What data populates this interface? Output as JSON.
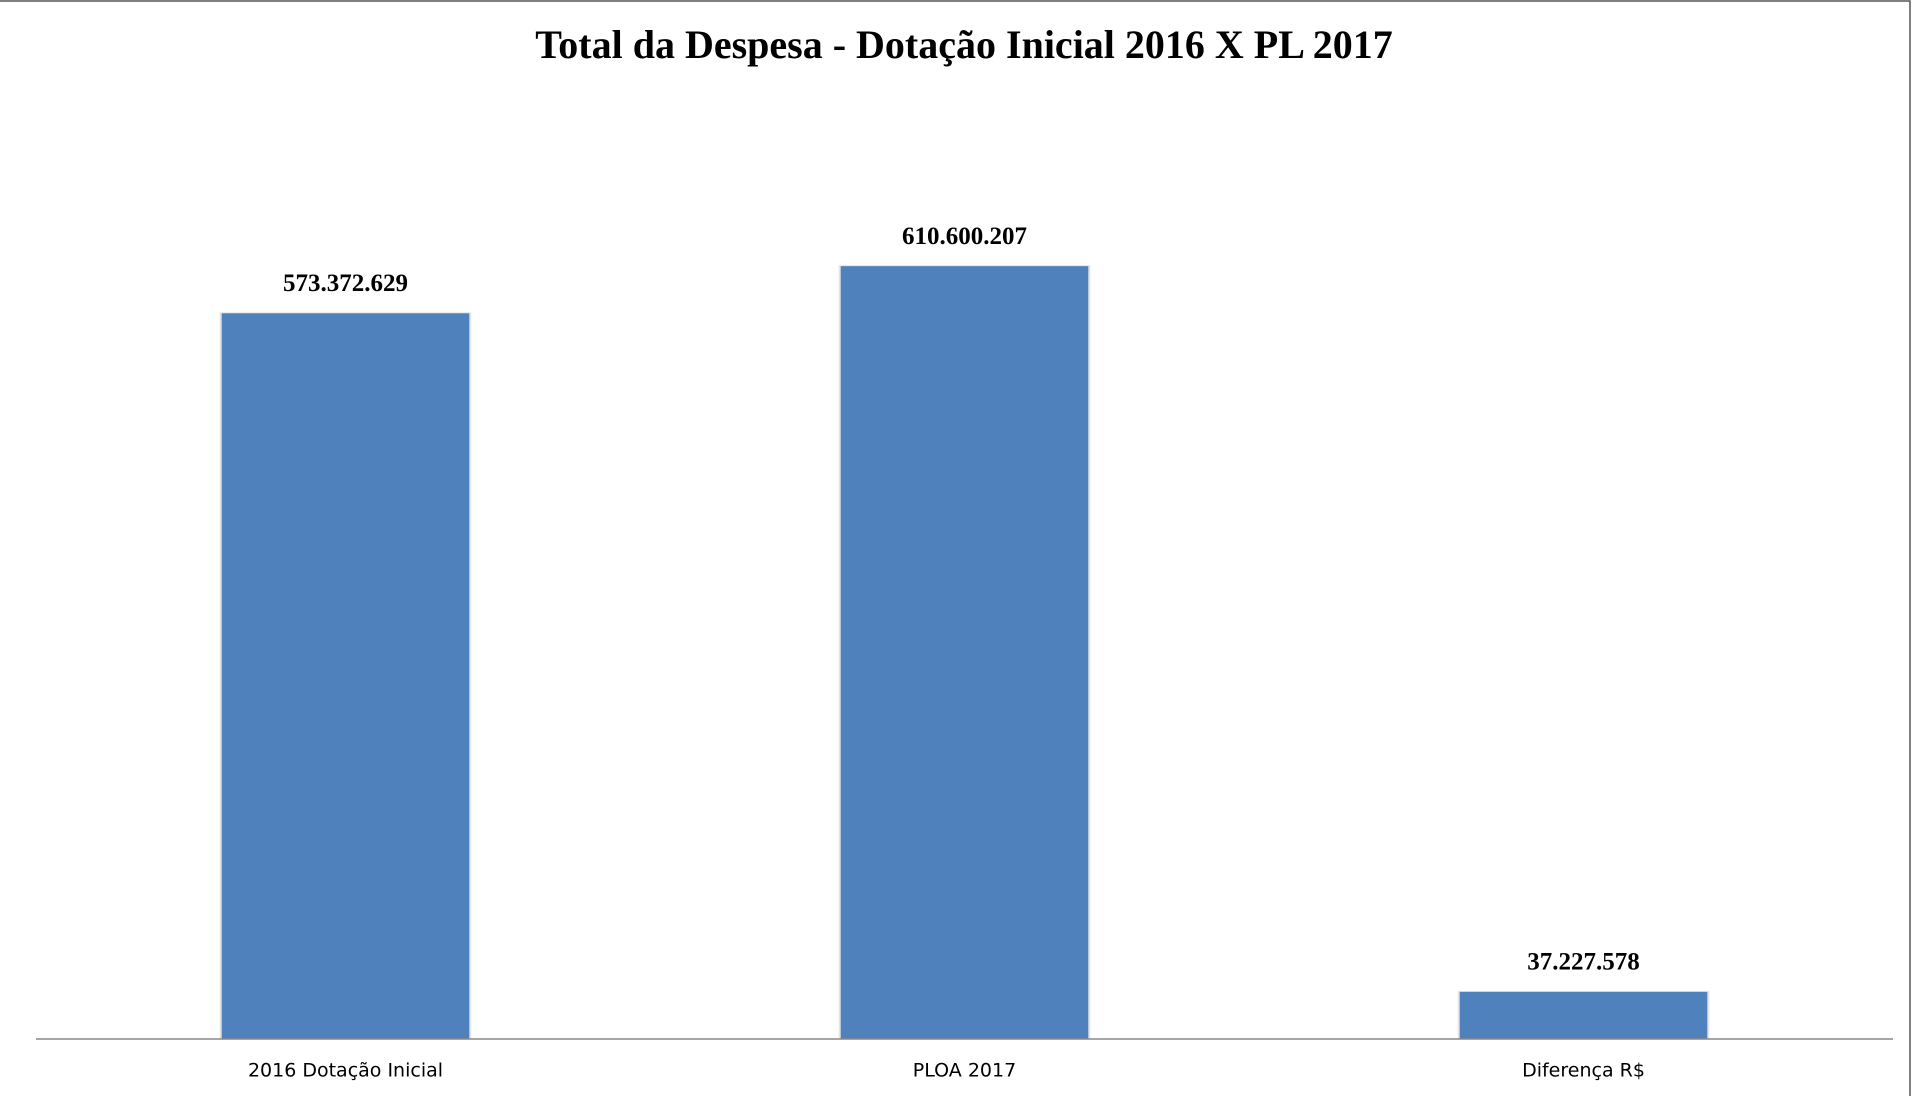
{
  "chart_data": {
    "type": "bar",
    "title": "Total da Despesa - Dotação Inicial 2016 X PL 2017",
    "categories": [
      "2016 Dotação Inicial",
      "PLOA 2017",
      "Diferença R$"
    ],
    "values": [
      573372629,
      610600207,
      37227578
    ],
    "value_labels": [
      "573.372.629",
      "610.600.207",
      "37.227.578"
    ],
    "color": "#4f81bd",
    "ylim": [
      0,
      700000000
    ]
  }
}
